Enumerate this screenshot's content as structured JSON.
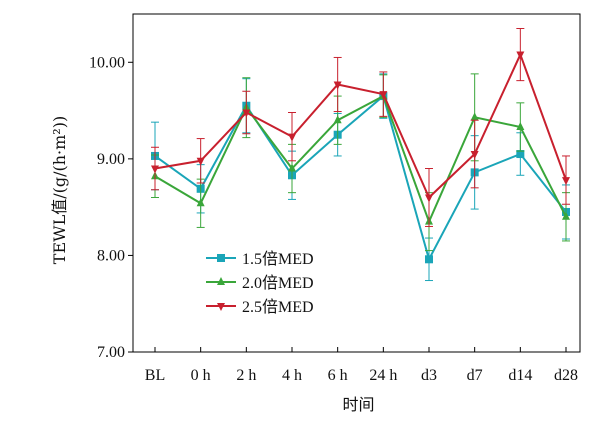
{
  "chart_data": {
    "type": "line",
    "title": "",
    "xlabel": "时间",
    "ylabel": "TEWL值/(g/(h·m²))",
    "categories": [
      "BL",
      "0 h",
      "2 h",
      "4 h",
      "6 h",
      "24 h",
      "d3",
      "d7",
      "d14",
      "d28"
    ],
    "ylim": [
      7.0,
      10.5
    ],
    "yticks": [
      "7.00",
      "8.00",
      "9.00",
      "10.00"
    ],
    "grid": false,
    "legend_position": "lower-left",
    "series": [
      {
        "name": "1.5倍MED",
        "color": "#1aa5b8",
        "marker": "square",
        "values": [
          9.03,
          8.69,
          9.55,
          8.83,
          9.25,
          9.65,
          7.96,
          8.86,
          9.05,
          8.45
        ],
        "errors": [
          0.35,
          0.25,
          0.28,
          0.25,
          0.22,
          0.23,
          0.22,
          0.38,
          0.22,
          0.28
        ]
      },
      {
        "name": "2.0倍MED",
        "color": "#3aa63a",
        "marker": "triangle-up",
        "values": [
          8.82,
          8.54,
          9.53,
          8.9,
          9.4,
          9.65,
          8.35,
          9.43,
          9.33,
          8.4
        ],
        "errors": [
          0.22,
          0.25,
          0.31,
          0.25,
          0.25,
          0.22,
          0.3,
          0.45,
          0.25,
          0.25
        ]
      },
      {
        "name": "2.5倍MED",
        "color": "#c8202e",
        "marker": "triangle-down",
        "values": [
          8.9,
          8.98,
          9.48,
          9.23,
          9.77,
          9.67,
          8.6,
          9.05,
          10.08,
          8.78
        ],
        "errors": [
          0.22,
          0.23,
          0.22,
          0.25,
          0.28,
          0.23,
          0.3,
          0.35,
          0.27,
          0.25
        ]
      }
    ]
  }
}
